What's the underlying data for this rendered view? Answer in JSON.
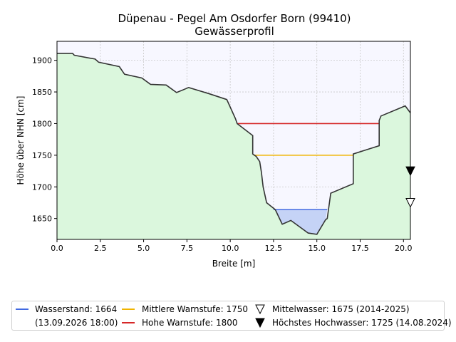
{
  "chart_data": {
    "type": "area",
    "title": "Düpenau - Pegel Am Osdorfer Born (99410)",
    "subtitle": "Gewässerprofil",
    "xlabel": "Breite [m]",
    "ylabel": "Höhe über NHN [cm]",
    "xlim": [
      0,
      20.4
    ],
    "ylim": [
      1617,
      1930
    ],
    "x_ticks": [
      0,
      2.5,
      5,
      7.5,
      10,
      12.5,
      15,
      17.5,
      20
    ],
    "x_tick_labels": [
      "0.0",
      "2.5",
      "5.0",
      "7.5",
      "10.0",
      "12.5",
      "15.0",
      "17.5",
      "20.0"
    ],
    "y_ticks": [
      1650,
      1700,
      1750,
      1800,
      1850,
      1900
    ],
    "y_tick_labels": [
      "1650",
      "1700",
      "1750",
      "1800",
      "1850",
      "1900"
    ],
    "grid": true,
    "legend_position": "bottom",
    "profile": {
      "x": [
        0,
        0.9,
        1.0,
        2.2,
        2.4,
        3.6,
        3.9,
        4.9,
        5.4,
        6.3,
        6.9,
        7.6,
        8.8,
        9.8,
        10.3,
        10.4,
        11.3,
        11.3,
        11.5,
        11.7,
        11.8,
        11.9,
        12.1,
        12.6,
        13.0,
        13.5,
        14.5,
        15.0,
        15.5,
        15.6,
        15.8,
        17.1,
        17.1,
        18.6,
        18.6,
        18.7,
        20.1,
        20.4
      ],
      "y": [
        1911,
        1911,
        1908,
        1902,
        1897,
        1890,
        1878,
        1872,
        1862,
        1861,
        1849,
        1857,
        1847,
        1838,
        1808,
        1800,
        1781,
        1752,
        1748,
        1740,
        1723,
        1700,
        1675,
        1664,
        1641,
        1647,
        1627,
        1625,
        1648,
        1650,
        1690,
        1705,
        1752,
        1765,
        1805,
        1812,
        1828,
        1817
      ]
    },
    "levels": [
      {
        "name": "Wasserstand: 1664",
        "value": 1664,
        "x_range": [
          12.5,
          15.6
        ],
        "color": "#4169e1"
      },
      {
        "name": "Mittlere Warnstufe: 1750",
        "value": 1750,
        "x_range": [
          11.35,
          17.1
        ],
        "color": "#f0b400"
      },
      {
        "name": "Hohe Warnstufe: 1800",
        "value": 1800,
        "x_range": [
          10.4,
          18.6
        ],
        "color": "#d62728"
      }
    ],
    "markers": [
      {
        "name": "Mittelwasser: 1675 (2014-2025)",
        "value": 1675,
        "style": "open-triangle-down"
      },
      {
        "name": "Höchstes Hochwasser: 1725 (14.08.2024)",
        "value": 1725,
        "style": "filled-triangle-down"
      }
    ],
    "colors": {
      "ground_fill": "#dbf7dd",
      "sky_fill": "#f7f7ff",
      "water_fill": "#c5d3f6",
      "profile_line": "#333333"
    }
  },
  "legend": {
    "wasserstand": "Wasserstand: 1664",
    "wasserstand_time": "(13.09.2026 18:00)",
    "mittlere": "Mittlere Warnstufe: 1750",
    "hohe": "Hohe Warnstufe: 1800",
    "mittelwasser": "Mittelwasser: 1675 (2014-2025)",
    "hochwasser": "Höchstes Hochwasser: 1725 (14.08.2024)"
  }
}
